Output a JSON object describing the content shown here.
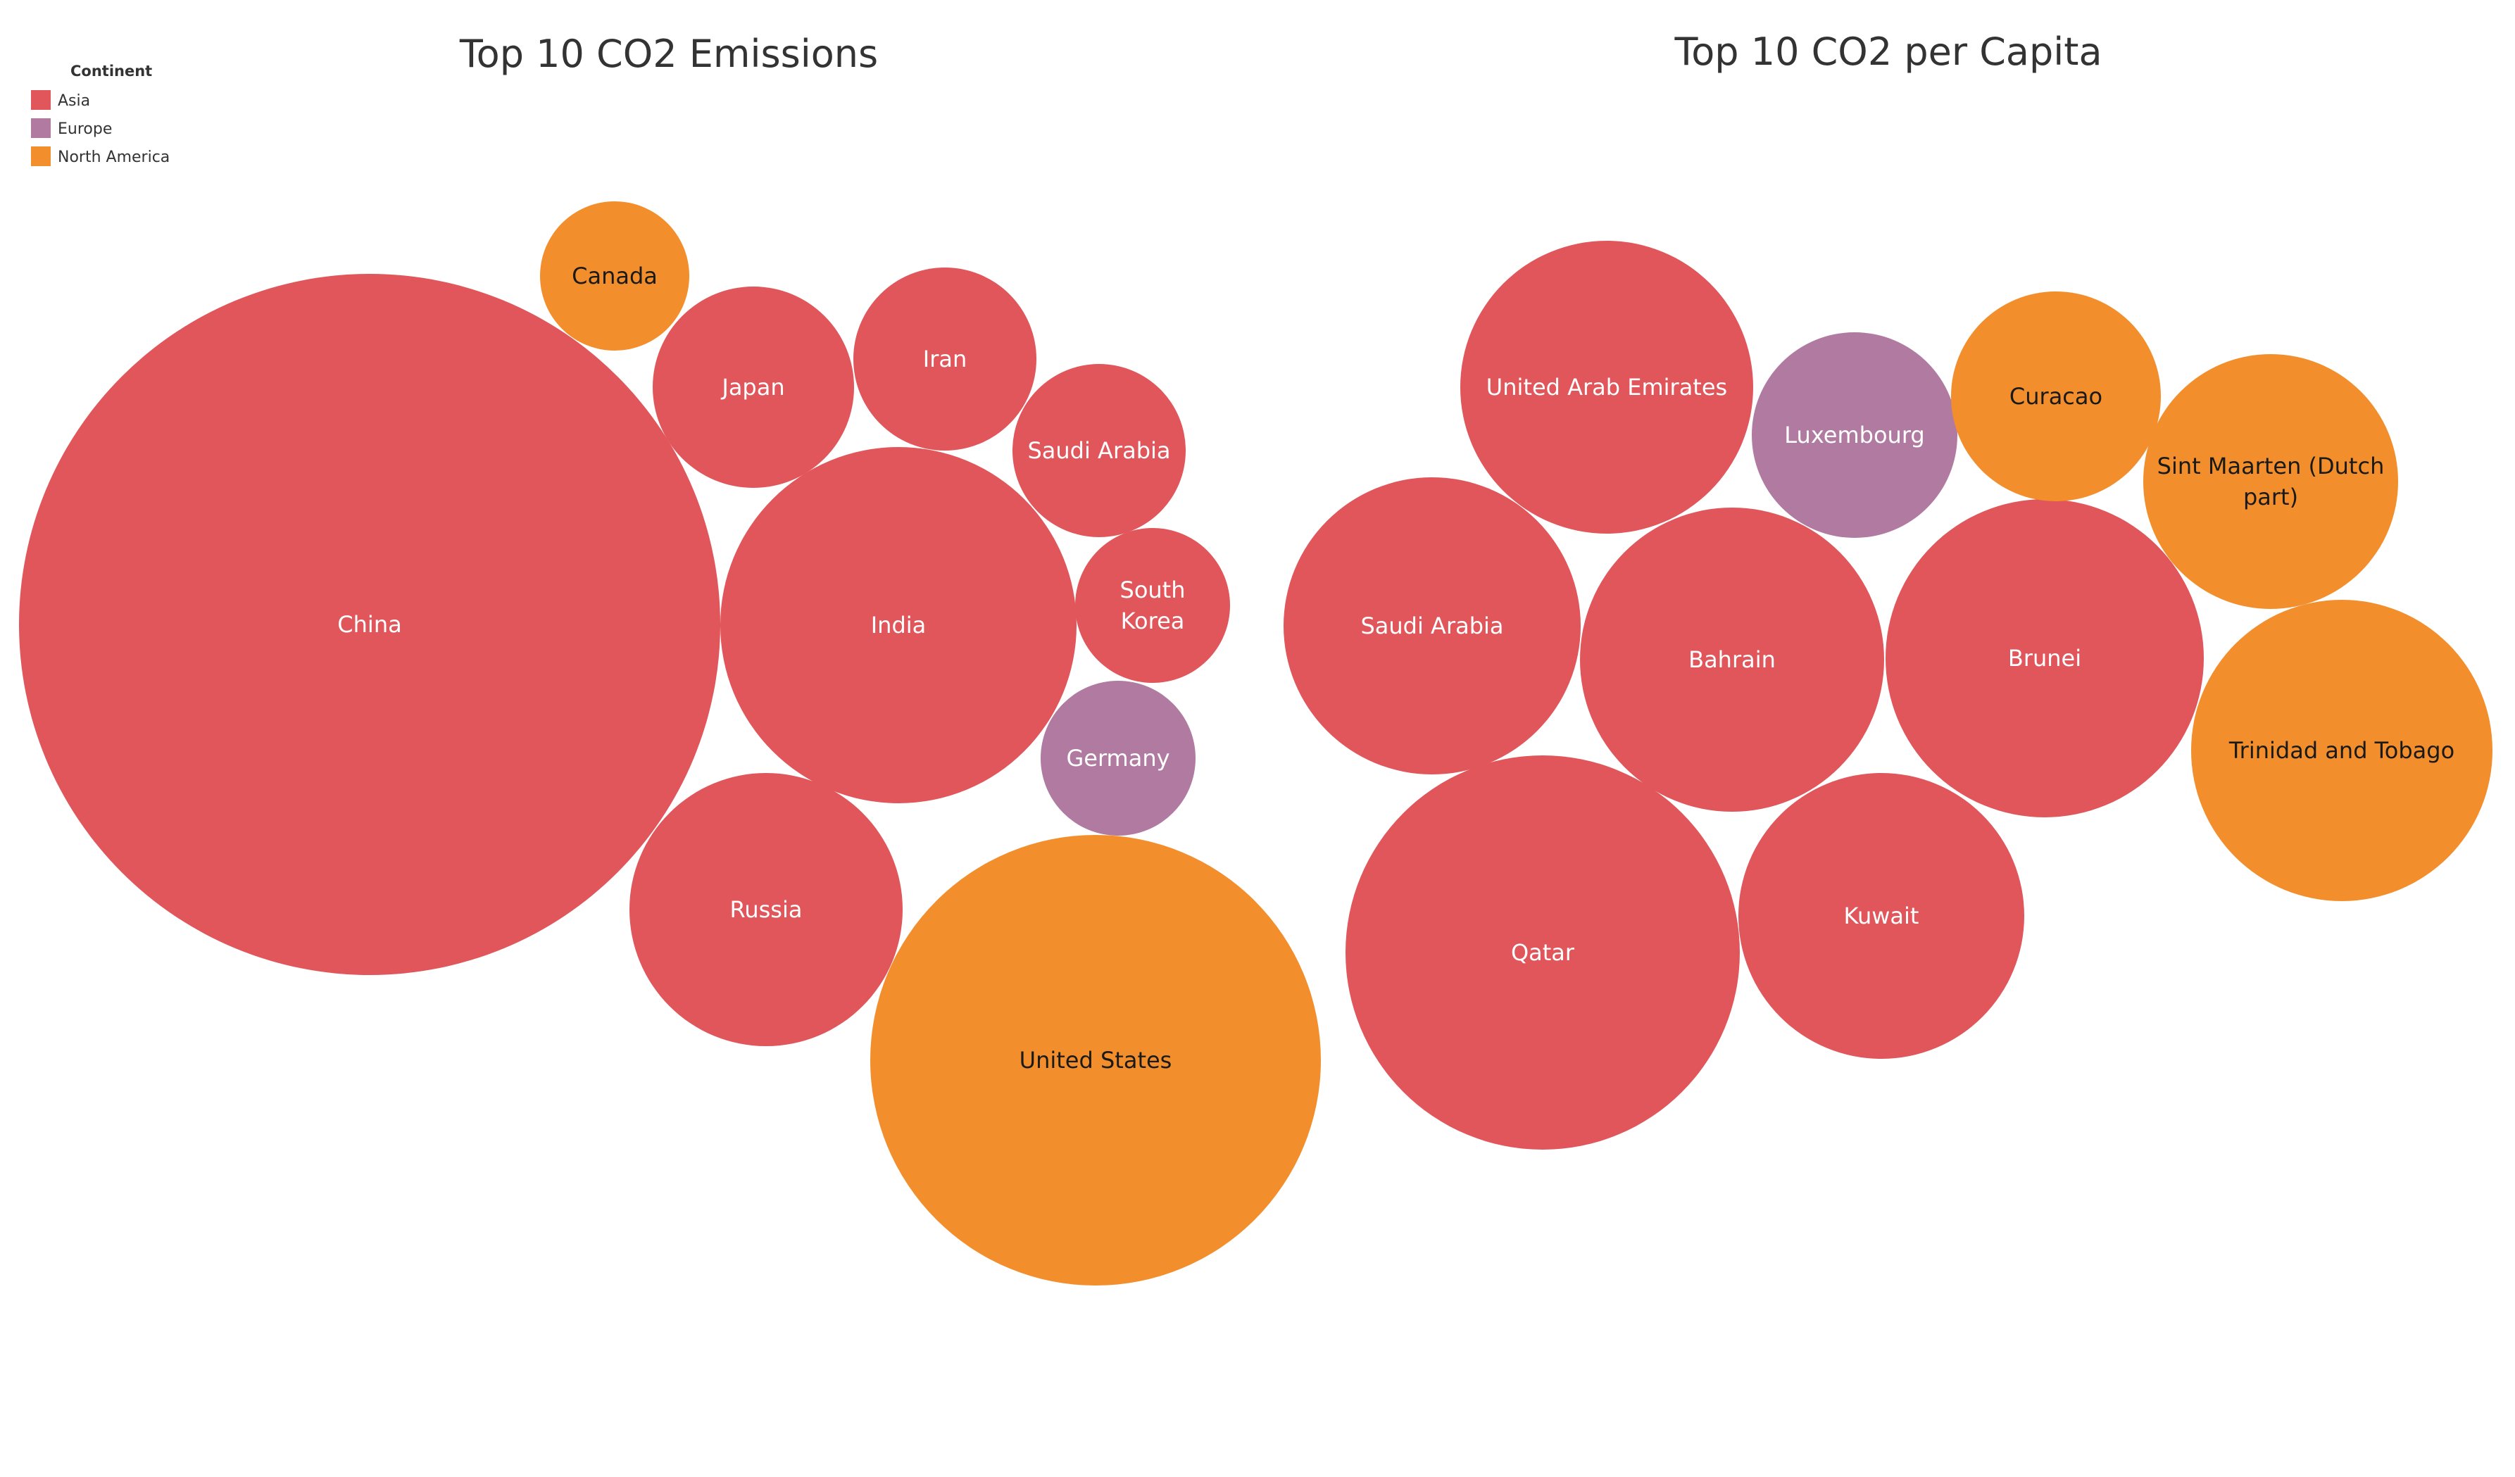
{
  "legend": {
    "title": "Continent",
    "items": [
      {
        "label": "Asia",
        "color": "#e0565b"
      },
      {
        "label": "Europe",
        "color": "#b07aa1"
      },
      {
        "label": "North America",
        "color": "#f28e2c"
      }
    ]
  },
  "chart_data": [
    {
      "type": "bubble",
      "title": "Top 10 CO2 Emissions",
      "color_by": "Continent",
      "points": [
        {
          "label": "China",
          "continent": "Asia"
        },
        {
          "label": "United States",
          "continent": "North America"
        },
        {
          "label": "India",
          "continent": "Asia"
        },
        {
          "label": "Russia",
          "continent": "Asia"
        },
        {
          "label": "Japan",
          "continent": "Asia"
        },
        {
          "label": "Iran",
          "continent": "Asia"
        },
        {
          "label": "Saudi Arabia",
          "continent": "Asia"
        },
        {
          "label": "Canada",
          "continent": "North America"
        },
        {
          "label": "South Korea",
          "continent": "Asia"
        },
        {
          "label": "Germany",
          "continent": "Europe"
        }
      ]
    },
    {
      "type": "bubble",
      "title": "Top 10 CO2 per Capita",
      "color_by": "Continent",
      "points": [
        {
          "label": "Qatar",
          "continent": "Asia"
        },
        {
          "label": "Brunei",
          "continent": "Asia"
        },
        {
          "label": "United Arab Emirates",
          "continent": "Asia"
        },
        {
          "label": "Bahrain",
          "continent": "Asia"
        },
        {
          "label": "Saudi Arabia",
          "continent": "Asia"
        },
        {
          "label": "Trinidad and Tobago",
          "continent": "North America"
        },
        {
          "label": "Kuwait",
          "continent": "Asia"
        },
        {
          "label": "Sint Maarten (Dutch part)",
          "continent": "North America"
        },
        {
          "label": "Luxembourg",
          "continent": "Europe"
        },
        {
          "label": "Curacao",
          "continent": "North America"
        }
      ]
    }
  ]
}
